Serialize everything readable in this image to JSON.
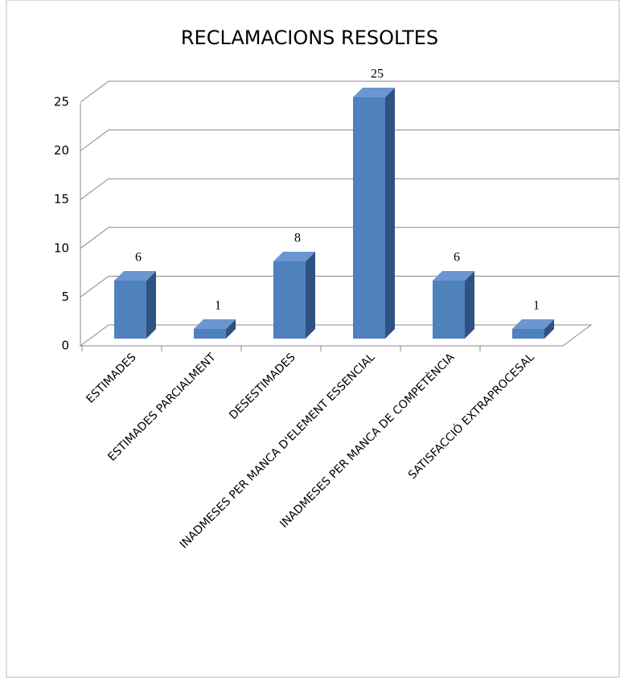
{
  "chart_data": {
    "type": "bar3d",
    "title": "RECLAMACIONS RESOLTES",
    "categories": [
      "ESTIMADES",
      "ESTIMADES PARCIALMENT",
      "DESESTIMADES",
      "INADMESES PER MANCA D'ELEMENT ESSENCIAL",
      "INADMESES PER MANCA DE COMPETÈNCIA",
      "SATISFACCIÓ EXTRAPROCESAL"
    ],
    "values": [
      6,
      1,
      8,
      25,
      6,
      1
    ],
    "color": "#4f81bd",
    "ylim": [
      0,
      25
    ],
    "yticks": [
      0,
      5,
      10,
      15,
      20,
      25
    ],
    "grid": true
  }
}
